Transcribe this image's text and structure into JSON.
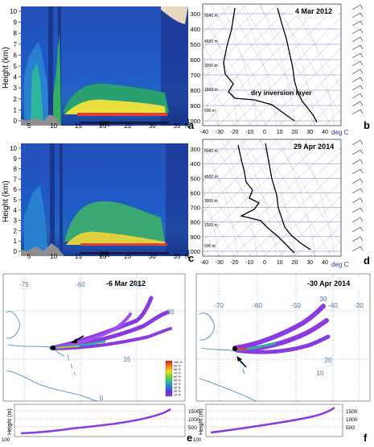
{
  "panel_a": {
    "letter": "a",
    "y_axis_label": "Height (km)",
    "y_ticks": [
      "0",
      "1",
      "2",
      "3",
      "4",
      "5",
      "6",
      "7",
      "8",
      "9",
      "10"
    ],
    "x_ticks": [
      "5",
      "10",
      "15",
      "20",
      "25",
      "30",
      "35"
    ],
    "x_unit": "N",
    "pr_label": "PR"
  },
  "panel_b": {
    "letter": "b",
    "date": "4 Mar 2012",
    "pressure_ticks": [
      "300",
      "400",
      "500",
      "600",
      "700",
      "800",
      "900",
      "1000"
    ],
    "temp_ticks": [
      "-40",
      "-30",
      "-20",
      "-10",
      "0",
      "10",
      "20",
      "30",
      "40"
    ],
    "temp_unit": "deg C",
    "annotation": "dry inversion layer",
    "bg_labels": [
      "6040 m",
      "4500 m",
      "3000 m",
      "1500 m",
      "500 m"
    ]
  },
  "panel_c": {
    "letter": "c",
    "y_axis_label": "Height (km)",
    "y_ticks": [
      "0",
      "1",
      "2",
      "3",
      "4",
      "5",
      "6",
      "7",
      "8",
      "9",
      "10"
    ],
    "x_ticks": [
      "5",
      "10",
      "15",
      "20",
      "25",
      "30",
      "35"
    ],
    "x_unit": "N",
    "pr_label": "PR"
  },
  "panel_d": {
    "letter": "d",
    "date": "29 Apr 2014",
    "pressure_ticks": [
      "300",
      "400",
      "500",
      "600",
      "700",
      "800",
      "900",
      "1000"
    ],
    "temp_ticks": [
      "-40",
      "-30",
      "-20",
      "-10",
      "0",
      "10",
      "20",
      "30",
      "40"
    ],
    "temp_unit": "deg C",
    "bg_labels": [
      "6040 m",
      "4500 m",
      "3000 m",
      "1500 m",
      "500 m"
    ]
  },
  "panel_e": {
    "letter": "e",
    "date": "-6 Mar 2012",
    "lon_labels": [
      "-75",
      "-60",
      "-45"
    ],
    "lat_labels": [
      "30",
      "15",
      "0"
    ],
    "height_label": "Height (m)",
    "height_ticks": [
      "1500",
      "1000",
      "500"
    ],
    "colorbar_labels": [
      "100 %",
      "90 %",
      "80 %",
      "70 %",
      "60 %",
      "50 %",
      "40 %",
      "30 %",
      "20 %",
      "10 %"
    ],
    "corner_label": "100"
  },
  "panel_f": {
    "letter": "f",
    "date": "-30 Apr 2014",
    "lon_labels": [
      "-70",
      "-60",
      "-50",
      "-40",
      "-30"
    ],
    "lat_labels": [
      "30",
      "20",
      "10"
    ],
    "height_label": "Height (m)",
    "height_ticks": [
      "1500",
      "1000",
      "500"
    ],
    "corner_label": "100"
  },
  "colors": {
    "radar_bg": "#1f4db4",
    "map_sea": "#ffffff",
    "plume": "#8a3be0",
    "height_line": "#8a3be0"
  }
}
